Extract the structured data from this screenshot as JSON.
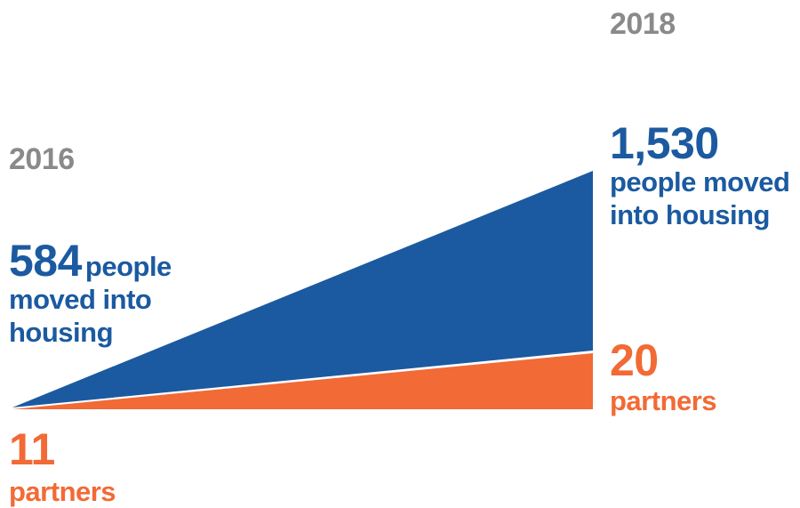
{
  "chart_data": {
    "type": "area",
    "x": [
      "2016",
      "2018"
    ],
    "series": [
      {
        "name": "people moved into housing",
        "values": [
          584,
          1530
        ],
        "color": "#1b5aa0"
      },
      {
        "name": "partners",
        "values": [
          11,
          20
        ],
        "color": "#f26a35"
      }
    ],
    "grid": false,
    "legend": "none"
  },
  "labels": {
    "year_start": "2016",
    "year_end": "2018",
    "start_people_number": "584",
    "start_people_text_1": "people",
    "start_people_text_2": "moved into",
    "start_people_text_3": "housing",
    "end_people_number": "1,530",
    "end_people_text_1": "people moved",
    "end_people_text_2": "into housing",
    "start_partners_number": "11",
    "start_partners_text": "partners",
    "end_partners_number": "20",
    "end_partners_text": "partners"
  },
  "colors": {
    "blue": "#1b5aa0",
    "orange": "#f26a35",
    "year_gray": "#8a8a8a"
  }
}
